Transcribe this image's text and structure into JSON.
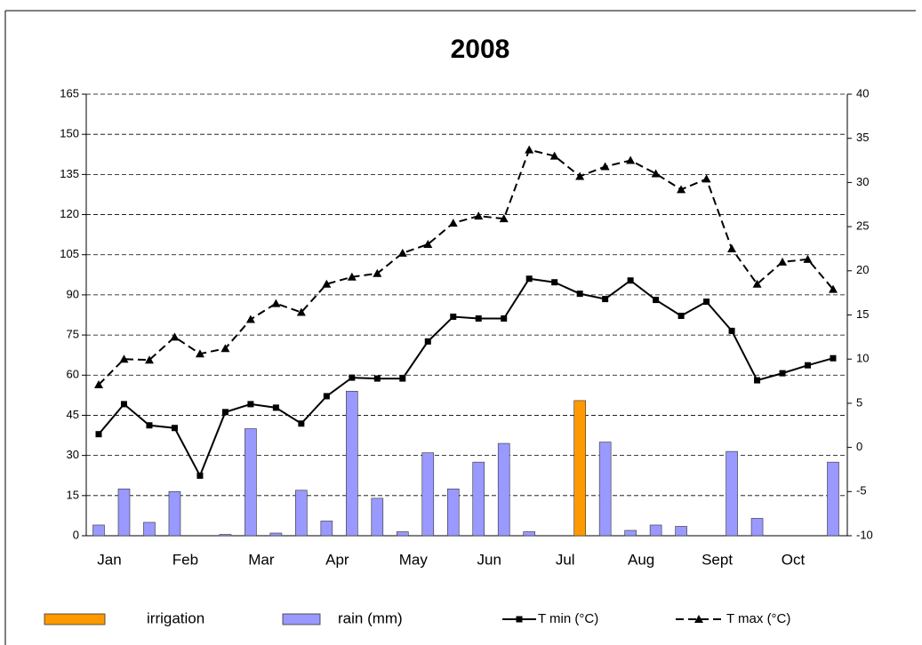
{
  "chart_data": {
    "type": "bar_line",
    "title": "2008",
    "categories": [
      "Jan",
      null,
      null,
      "Feb",
      null,
      null,
      "Mar",
      null,
      null,
      "Apr",
      null,
      null,
      "May",
      null,
      null,
      "Jun",
      null,
      null,
      "Jul",
      null,
      null,
      "Aug",
      null,
      null,
      "Sept",
      null,
      null,
      "Oct",
      null,
      null
    ],
    "ylim": [
      0,
      165
    ],
    "yticks": [
      0,
      15,
      30,
      45,
      60,
      75,
      90,
      105,
      120,
      135,
      150,
      165
    ],
    "y2lim": [
      -10,
      40
    ],
    "y2ticks": [
      -10,
      -5,
      0,
      5,
      10,
      15,
      20,
      25,
      30,
      35,
      40
    ],
    "grid": true,
    "legend": "bottom",
    "series": [
      {
        "name": "irrigation",
        "kind": "bar",
        "color": "#ff9900",
        "values": [
          null,
          null,
          null,
          null,
          null,
          null,
          null,
          null,
          null,
          null,
          null,
          null,
          null,
          null,
          null,
          null,
          null,
          null,
          null,
          50.5,
          null,
          null,
          null,
          null,
          null,
          null,
          null,
          null,
          null,
          null
        ]
      },
      {
        "name": "rain (mm)",
        "kind": "bar",
        "color": "#9999ff",
        "values": [
          4,
          17.5,
          5,
          16.5,
          0,
          0.5,
          40,
          1,
          17,
          5.5,
          54,
          14,
          1.5,
          31,
          17.5,
          27.5,
          34.5,
          1.5,
          0,
          0,
          35,
          2,
          4,
          3.5,
          0,
          31.5,
          6.5,
          0,
          0,
          27.5
        ]
      },
      {
        "name": "T min (°C)",
        "kind": "line",
        "axis": "y2",
        "color": "#000000",
        "values": [
          1.5,
          4.9,
          2.5,
          2.2,
          -3.2,
          4.0,
          4.9,
          4.5,
          2.7,
          5.8,
          7.9,
          7.8,
          7.8,
          12.0,
          14.8,
          14.6,
          14.6,
          19.1,
          18.7,
          17.4,
          16.8,
          18.9,
          16.7,
          14.9,
          16.5,
          13.2,
          7.6,
          8.4,
          9.3,
          10.1
        ]
      },
      {
        "name": "T max (°C)",
        "kind": "dashed",
        "axis": "y2",
        "color": "#000000",
        "values": [
          7.1,
          10.0,
          9.9,
          12.5,
          10.6,
          11.2,
          14.5,
          16.3,
          15.3,
          18.5,
          19.3,
          19.7,
          22.0,
          23.0,
          25.4,
          26.2,
          25.9,
          33.7,
          33.0,
          30.7,
          31.8,
          32.5,
          31.0,
          29.2,
          30.4,
          22.5,
          18.5,
          21.0,
          21.3,
          17.9
        ]
      }
    ]
  }
}
